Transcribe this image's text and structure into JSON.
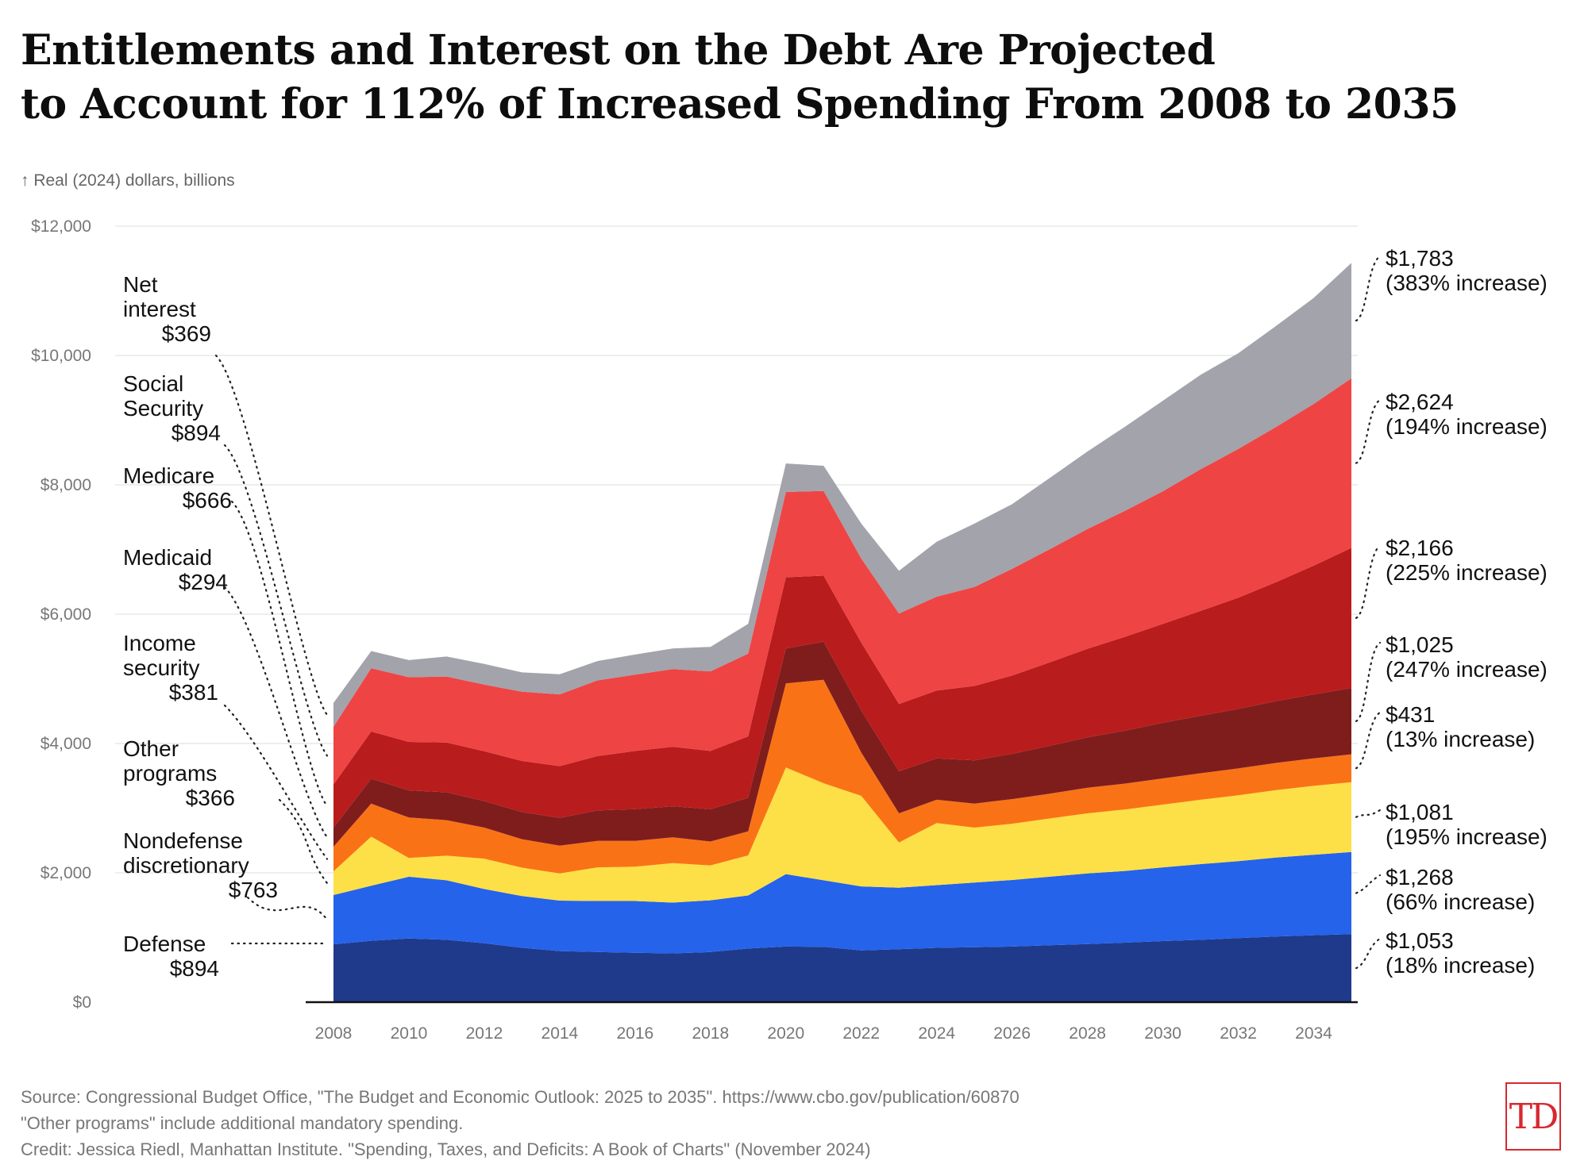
{
  "title_lines": [
    "Entitlements and Interest on the Debt Are Projected",
    "to Account for 112% of Increased Spending From 2008 to 2035"
  ],
  "unit_label": "↑ Real (2024) dollars, billions",
  "footer_lines": [
    "Source: Congressional Budget Office, \"The Budget and Economic Outlook: 2025 to 2035\". https://www.cbo.gov/publication/60870",
    "\"Other programs\" include additional mandatory spending.",
    "Credit: Jessica Riedl, Manhattan Institute. \"Spending, Taxes, and Deficits: A Book of Charts\" (November 2024)"
  ],
  "logo_text": "TD",
  "chart_data": {
    "type": "area",
    "stacked": true,
    "title": "Entitlements and Interest on the Debt Are Projected to Account for 112% of Increased Spending From 2008 to 2035",
    "ylabel": "Real (2024) dollars, billions",
    "ylim": [
      0,
      12000
    ],
    "yticks": [
      0,
      2000,
      4000,
      6000,
      8000,
      10000,
      12000
    ],
    "ytick_labels": [
      "$0",
      "$2,000",
      "$4,000",
      "$6,000",
      "$8,000",
      "$10,000",
      "$12,000"
    ],
    "xticks": [
      2008,
      2010,
      2012,
      2014,
      2016,
      2018,
      2020,
      2022,
      2024,
      2026,
      2028,
      2030,
      2032,
      2034
    ],
    "x": [
      2008,
      2009,
      2010,
      2011,
      2012,
      2013,
      2014,
      2015,
      2016,
      2017,
      2018,
      2019,
      2020,
      2021,
      2022,
      2023,
      2024,
      2025,
      2026,
      2027,
      2028,
      2029,
      2030,
      2031,
      2032,
      2033,
      2034,
      2035
    ],
    "series": [
      {
        "name": "Defense",
        "color": "#1f3a8a",
        "start_label": [
          "Defense",
          "$894"
        ],
        "end_label": [
          "$1,053",
          "(18% increase)"
        ],
        "values": [
          894,
          950,
          985,
          965,
          910,
          840,
          790,
          775,
          765,
          755,
          775,
          830,
          860,
          855,
          800,
          820,
          840,
          850,
          860,
          880,
          900,
          920,
          945,
          965,
          990,
          1015,
          1035,
          1053
        ]
      },
      {
        "name": "Nondefense discretionary",
        "color": "#2563eb",
        "start_label": [
          "Nondefense",
          "discretionary",
          "$763"
        ],
        "end_label": [
          "$1,268",
          "(66% increase)"
        ],
        "values": [
          763,
          850,
          955,
          920,
          840,
          800,
          780,
          790,
          800,
          785,
          800,
          820,
          1120,
          1030,
          990,
          950,
          970,
          1000,
          1030,
          1060,
          1090,
          1110,
          1140,
          1170,
          1190,
          1220,
          1245,
          1268
        ]
      },
      {
        "name": "Other programs",
        "color": "#fde047",
        "start_label": [
          "Other",
          "programs",
          "$366"
        ],
        "end_label": [
          "$1,081",
          "(195% increase)"
        ],
        "values": [
          366,
          760,
          290,
          380,
          470,
          440,
          420,
          520,
          530,
          610,
          540,
          620,
          1650,
          1500,
          1400,
          700,
          960,
          850,
          870,
          900,
          930,
          950,
          970,
          995,
          1020,
          1045,
          1065,
          1081
        ]
      },
      {
        "name": "Income security",
        "color": "#f97316",
        "start_label": [
          "Income",
          "security",
          "$381"
        ],
        "end_label": [
          "$431",
          "(13% increase)"
        ],
        "values": [
          381,
          510,
          625,
          550,
          480,
          440,
          430,
          410,
          400,
          400,
          370,
          370,
          1300,
          1600,
          670,
          450,
          360,
          370,
          380,
          385,
          395,
          400,
          405,
          410,
          415,
          420,
          425,
          431
        ]
      },
      {
        "name": "Medicaid",
        "color": "#7f1d1d",
        "start_label": [
          "Medicaid",
          "$294"
        ],
        "end_label": [
          "$1,025",
          "(247% increase)"
        ],
        "values": [
          294,
          385,
          420,
          430,
          410,
          420,
          430,
          470,
          490,
          480,
          500,
          520,
          540,
          590,
          650,
          650,
          640,
          670,
          700,
          740,
          780,
          820,
          860,
          890,
          920,
          955,
          990,
          1025
        ]
      },
      {
        "name": "Medicare",
        "color": "#b91c1c",
        "start_label": [
          "Medicare",
          "$666"
        ],
        "end_label": [
          "$2,166",
          "(225% increase)"
        ],
        "values": [
          666,
          730,
          750,
          770,
          770,
          790,
          800,
          840,
          900,
          920,
          900,
          950,
          1100,
          1020,
          1050,
          1040,
          1050,
          1150,
          1210,
          1290,
          1370,
          1450,
          1530,
          1620,
          1720,
          1840,
          1990,
          2166
        ]
      },
      {
        "name": "Social Security",
        "color": "#ef4444",
        "start_label": [
          "Social",
          "Security",
          "$894"
        ],
        "end_label": [
          "$2,624",
          "(194% increase)"
        ],
        "values": [
          894,
          980,
          1000,
          1020,
          1030,
          1070,
          1110,
          1170,
          1180,
          1200,
          1230,
          1280,
          1320,
          1310,
          1300,
          1400,
          1450,
          1530,
          1650,
          1750,
          1850,
          1950,
          2050,
          2190,
          2300,
          2400,
          2500,
          2624
        ]
      },
      {
        "name": "Net interest",
        "color": "#a3a3ab",
        "start_label": [
          "Net",
          "interest",
          "$369"
        ],
        "end_label": [
          "$1,783",
          "(383% increase)"
        ],
        "values": [
          369,
          265,
          265,
          310,
          320,
          300,
          310,
          300,
          310,
          320,
          380,
          460,
          440,
          390,
          540,
          660,
          850,
          980,
          1000,
          1100,
          1200,
          1300,
          1400,
          1460,
          1480,
          1560,
          1640,
          1783
        ]
      }
    ]
  }
}
